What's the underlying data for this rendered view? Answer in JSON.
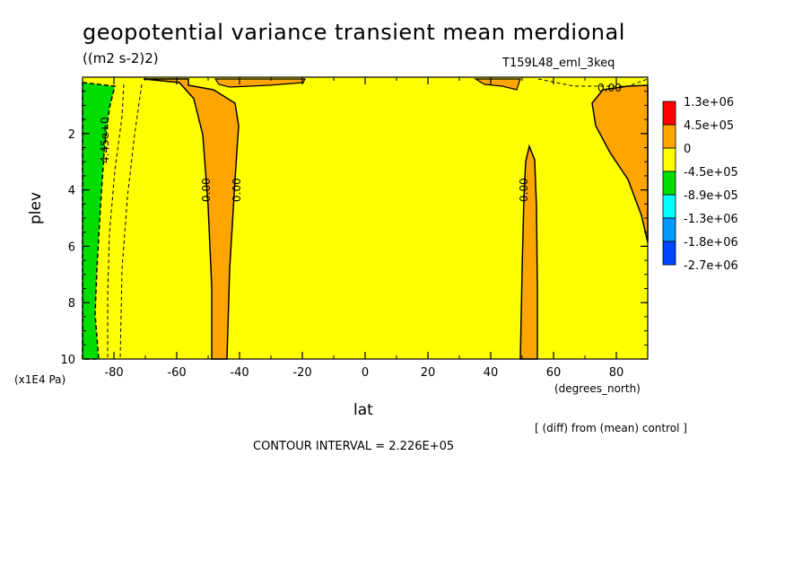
{
  "chart_data": {
    "type": "heatmap",
    "title": "geopotential variance transient mean merdional",
    "units": "((m2 s-2)2)",
    "run_id": "T159L48_eml_3keq",
    "xlabel": "lat",
    "x_units": "(degrees_north)",
    "ylabel": "plev",
    "y_scale_label": "(x1E4 Pa)",
    "xlim": [
      -90,
      90
    ],
    "ylim": [
      10,
      0
    ],
    "x_ticks": [
      -80,
      -60,
      -40,
      -20,
      0,
      20,
      40,
      60,
      80
    ],
    "y_ticks": [
      2,
      4,
      6,
      8,
      10
    ],
    "legend_levels": [
      "1.3e+06",
      "4.5e+05",
      "0",
      "-4.5e+05",
      "-8.9e+05",
      "-1.3e+06",
      "-1.8e+06",
      "-2.7e+06"
    ],
    "legend_colors": [
      "#ff0000",
      "#ffa500",
      "#ffff00",
      "#00dd00",
      "#00ffff",
      "#0099ff",
      "#0044ff"
    ],
    "background_color": "#ffff00",
    "regions": [
      {
        "name": "green low region",
        "color": "#00dd00",
        "lat_range": [
          -90,
          -84
        ],
        "plev_range": [
          0.2,
          10
        ]
      },
      {
        "name": "orange column -45",
        "color": "#ffa500",
        "lat_range": [
          -52,
          -42
        ],
        "plev_range": [
          0,
          10
        ]
      },
      {
        "name": "orange column 52",
        "color": "#ffa500",
        "lat_range": [
          50,
          55
        ],
        "plev_range": [
          2.5,
          10
        ]
      },
      {
        "name": "orange polar north",
        "color": "#ffa500",
        "lat_range": [
          70,
          90
        ],
        "plev_range": [
          0,
          6
        ]
      }
    ],
    "contour_labels": [
      "4.45e+0",
      "0.00",
      "0.00",
      "0.00",
      "0.00"
    ],
    "diff_note": "[ (diff) from (mean) control ]",
    "contour_interval": "CONTOUR INTERVAL = 2.226E+05"
  }
}
